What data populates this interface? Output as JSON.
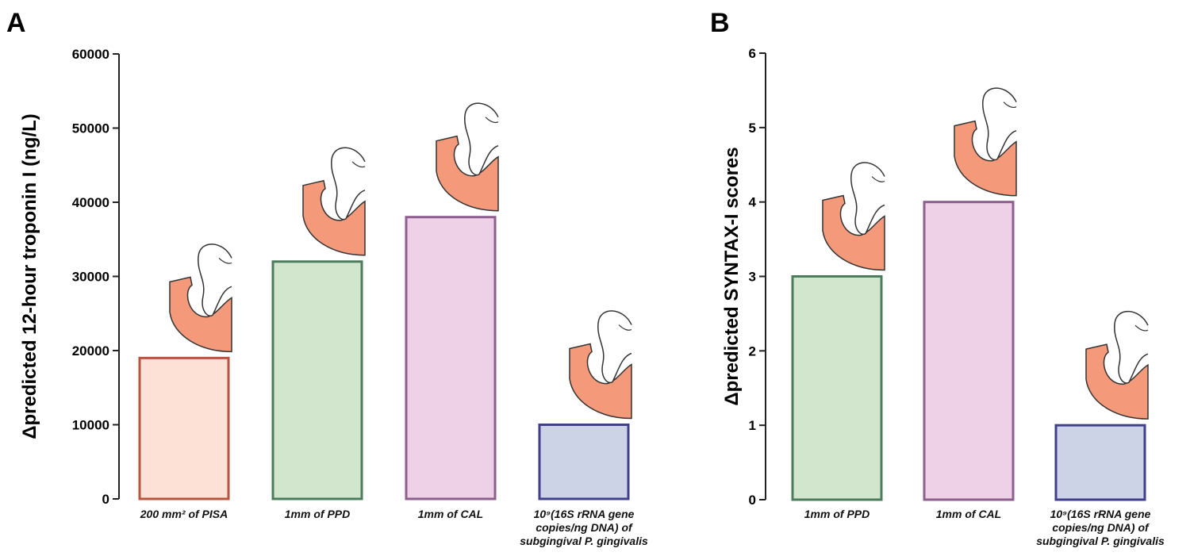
{
  "chart_data": [
    {
      "type": "bar",
      "label": "A",
      "ylabel": "Δpredicted 12-hour troponin I (ng/L)",
      "categories": [
        "200 mm² of PISA",
        "1mm of PPD",
        "1mm of CAL",
        "10⁹(16S rRNA gene copies/ng DNA) of subgingival P. gingivalis"
      ],
      "values": [
        19000,
        32000,
        38000,
        10000
      ],
      "colors": [
        "#fde1d6",
        "#d1e6cd",
        "#eed1e6",
        "#ccd3e6"
      ],
      "edgecolors": [
        "#b5553f",
        "#4d7c5c",
        "#8e5e8f",
        "#3f3f8c"
      ],
      "ylim": [
        0,
        60000
      ],
      "yticks": [
        0,
        10000,
        20000,
        30000,
        40000,
        50000,
        60000
      ]
    },
    {
      "type": "bar",
      "label": "B",
      "ylabel": "Δpredicted SYNTAX-I scores",
      "categories": [
        "1mm of PPD",
        "1mm of CAL",
        "10⁹(16S rRNA gene copies/ng DNA) of subgingival P. gingivalis"
      ],
      "values": [
        3,
        4,
        1
      ],
      "colors": [
        "#d1e6cd",
        "#eed1e6",
        "#ccd3e6"
      ],
      "edgecolors": [
        "#4d7c5c",
        "#8e5e8f",
        "#3f3f8c"
      ],
      "ylim": [
        0,
        6
      ],
      "yticks": [
        0,
        1,
        2,
        3,
        4,
        5,
        6
      ]
    }
  ]
}
